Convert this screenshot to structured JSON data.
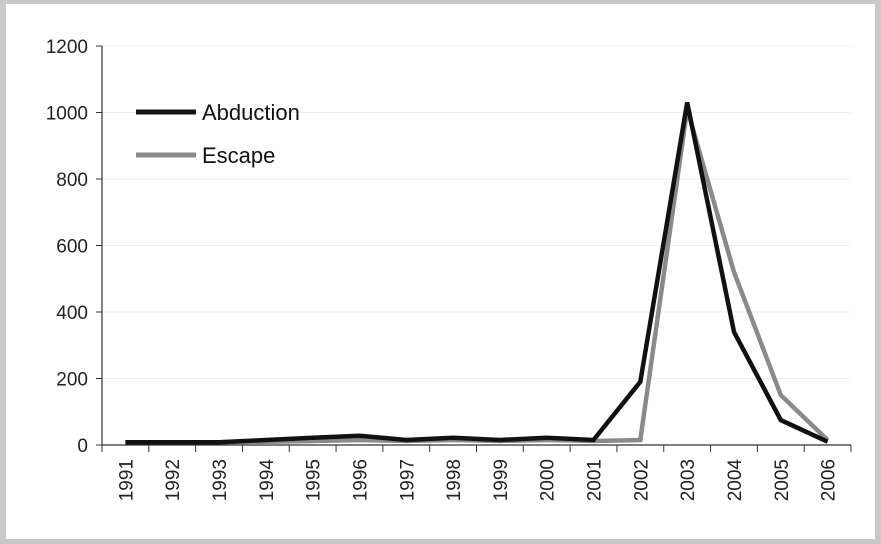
{
  "chart_data": {
    "type": "line",
    "title": "",
    "xlabel": "",
    "ylabel": "",
    "x": [
      "1991",
      "1992",
      "1993",
      "1994",
      "1995",
      "1996",
      "1997",
      "1998",
      "1999",
      "2000",
      "2001",
      "2002",
      "2003",
      "2004",
      "2005",
      "2006"
    ],
    "ylim": [
      0,
      1200
    ],
    "yticks": [
      0,
      200,
      400,
      600,
      800,
      1000,
      1200
    ],
    "grid": true,
    "legend_position": "top-left",
    "series": [
      {
        "name": "Abduction",
        "color": "#111111",
        "values": [
          8,
          8,
          8,
          15,
          22,
          28,
          15,
          22,
          15,
          22,
          15,
          190,
          1030,
          340,
          75,
          10
        ]
      },
      {
        "name": "Escape",
        "color": "#8a8a8a",
        "values": [
          8,
          8,
          8,
          10,
          12,
          15,
          12,
          15,
          12,
          15,
          12,
          15,
          1010,
          520,
          150,
          15
        ]
      }
    ]
  }
}
